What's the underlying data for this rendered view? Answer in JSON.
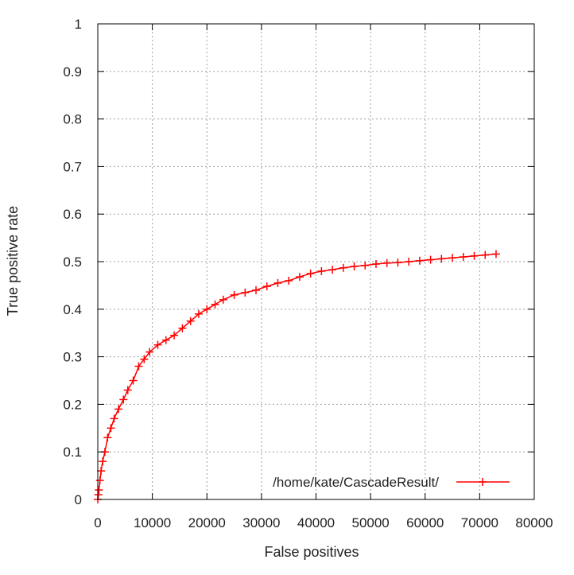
{
  "chart_data": {
    "type": "line",
    "xlabel": "False positives",
    "ylabel": "True positive rate",
    "xlim": [
      0,
      80000
    ],
    "ylim": [
      0,
      1
    ],
    "xticks": [
      0,
      10000,
      20000,
      30000,
      40000,
      50000,
      60000,
      70000,
      80000
    ],
    "xtick_labels": [
      "0",
      "10000",
      "20000",
      "30000",
      "40000",
      "50000",
      "60000",
      "70000",
      "80000"
    ],
    "yticks": [
      0,
      0.1,
      0.2,
      0.3,
      0.4,
      0.5,
      0.6,
      0.7,
      0.8,
      0.9,
      1
    ],
    "ytick_labels": [
      "0",
      "0.1",
      "0.2",
      "0.3",
      "0.4",
      "0.5",
      "0.6",
      "0.7",
      "0.8",
      "0.9",
      "1"
    ],
    "grid": true,
    "legend_position": "bottom-right",
    "series": [
      {
        "name": "/home/kate/CascadeResult/",
        "color": "#ff0000",
        "marker": "plus",
        "x": [
          0,
          100,
          200,
          400,
          600,
          900,
          1300,
          1800,
          2400,
          3000,
          3800,
          4700,
          5500,
          6500,
          7500,
          8500,
          9500,
          11000,
          12500,
          14000,
          15500,
          17000,
          18500,
          20000,
          21500,
          23000,
          25000,
          27000,
          29000,
          31000,
          33000,
          35000,
          37000,
          39000,
          41000,
          43000,
          45000,
          47000,
          49000,
          51000,
          53000,
          55000,
          57000,
          59000,
          61000,
          63000,
          65000,
          67000,
          69000,
          71000,
          73000
        ],
        "y": [
          0.0,
          0.01,
          0.02,
          0.04,
          0.06,
          0.08,
          0.1,
          0.13,
          0.15,
          0.17,
          0.19,
          0.21,
          0.23,
          0.25,
          0.28,
          0.295,
          0.31,
          0.325,
          0.335,
          0.345,
          0.36,
          0.375,
          0.39,
          0.4,
          0.41,
          0.42,
          0.43,
          0.435,
          0.44,
          0.448,
          0.455,
          0.46,
          0.468,
          0.475,
          0.48,
          0.483,
          0.487,
          0.49,
          0.492,
          0.495,
          0.497,
          0.498,
          0.5,
          0.502,
          0.504,
          0.506,
          0.508,
          0.51,
          0.512,
          0.514,
          0.516
        ]
      }
    ]
  }
}
